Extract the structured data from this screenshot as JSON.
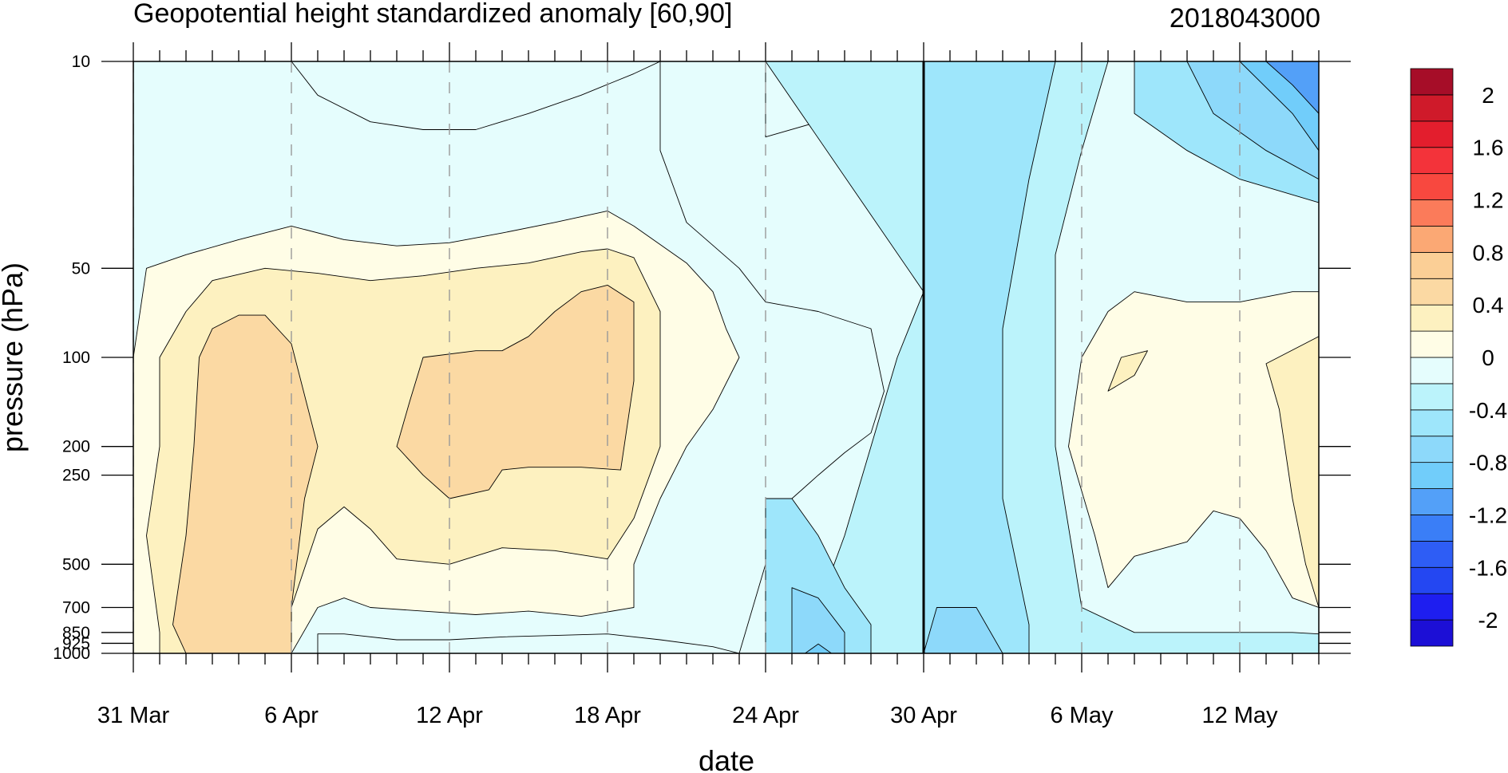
{
  "chart_data": {
    "type": "heatmap",
    "title": "Geopotential height standardized anomaly [60,90]",
    "subtitle": "2018043000",
    "xlabel": "date",
    "ylabel": "pressure (hPa)",
    "x_start": "31 Mar",
    "x_end": "15 May",
    "x_ticks": [
      {
        "label": "31 Mar",
        "day": 0
      },
      {
        "label": "6 Apr",
        "day": 6
      },
      {
        "label": "12 Apr",
        "day": 12
      },
      {
        "label": "18 Apr",
        "day": 18
      },
      {
        "label": "24 Apr",
        "day": 24
      },
      {
        "label": "30 Apr",
        "day": 30
      },
      {
        "label": "6 May",
        "day": 36
      },
      {
        "label": "12 May",
        "day": 42
      }
    ],
    "y_ticks": [
      {
        "label": "10",
        "p": 10
      },
      {
        "label": "50",
        "p": 50
      },
      {
        "label": "100",
        "p": 100
      },
      {
        "label": "200",
        "p": 200
      },
      {
        "label": "250",
        "p": 250
      },
      {
        "label": "500",
        "p": 500
      },
      {
        "label": "700",
        "p": 700
      },
      {
        "label": "850",
        "p": 850
      },
      {
        "label": "925",
        "p": 925
      },
      {
        "label": "1000",
        "p": 1000
      }
    ],
    "y_scale": "log",
    "y_reversed": true,
    "ylim": [
      1000,
      10
    ],
    "marker_day": 30,
    "grid": "dashed vertical lines at x ticks",
    "contour_levels": [
      -2.2,
      -2,
      -1.8,
      -1.6,
      -1.4,
      -1.2,
      -1,
      -0.8,
      -0.6,
      -0.4,
      -0.2,
      0,
      0.2,
      0.4,
      0.6,
      0.8,
      1,
      1.2,
      1.4,
      1.6,
      1.8,
      2,
      2.2
    ],
    "colorbar": {
      "colors": [
        "#1c0fd6",
        "#1e1ef0",
        "#2447f2",
        "#2e5df5",
        "#3a7ef7",
        "#53a0f8",
        "#71cdfa",
        "#8dd9fa",
        "#9ee6fb",
        "#bbf3fb",
        "#e5fdfd",
        "#fffde6",
        "#fdf1c0",
        "#fbd9a3",
        "#fbcf96",
        "#fba874",
        "#fb7b5a",
        "#f8483f",
        "#f3333a",
        "#e31e2d",
        "#cf1a2a",
        "#a60d28"
      ],
      "labels": [
        "2",
        "1.6",
        "1.2",
        "0.8",
        "0.4",
        "0",
        "-0.4",
        "-0.8",
        "-1.2",
        "-1.6",
        "-2"
      ]
    },
    "regions": [
      {
        "v": 0.0,
        "pts": [
          [
            0.5,
            50
          ],
          [
            2,
            45
          ],
          [
            4,
            40
          ],
          [
            6,
            36
          ],
          [
            8,
            40
          ],
          [
            10,
            42
          ],
          [
            12,
            41
          ],
          [
            14,
            38
          ],
          [
            16,
            35
          ],
          [
            18,
            32
          ],
          [
            19,
            36
          ],
          [
            21,
            48
          ],
          [
            22,
            60
          ],
          [
            22.5,
            80
          ],
          [
            23,
            100
          ],
          [
            22,
            150
          ],
          [
            21,
            200
          ],
          [
            20,
            300
          ],
          [
            19,
            500
          ],
          [
            19,
            700
          ],
          [
            17,
            750
          ],
          [
            15,
            720
          ],
          [
            13,
            740
          ],
          [
            11,
            720
          ],
          [
            9,
            700
          ],
          [
            8,
            650
          ],
          [
            7,
            700
          ],
          [
            6,
            1000
          ],
          [
            0,
            1000
          ],
          [
            0,
            850
          ],
          [
            0,
            100
          ]
        ]
      },
      {
        "v": 0.2,
        "pts": [
          [
            1,
            100
          ],
          [
            2,
            70
          ],
          [
            3,
            55
          ],
          [
            5,
            50
          ],
          [
            7,
            52
          ],
          [
            9,
            55
          ],
          [
            11,
            53
          ],
          [
            13,
            50
          ],
          [
            15,
            48
          ],
          [
            17,
            44
          ],
          [
            18,
            43
          ],
          [
            19,
            46
          ],
          [
            20,
            70
          ],
          [
            20,
            200
          ],
          [
            19,
            350
          ],
          [
            18,
            480
          ],
          [
            16,
            450
          ],
          [
            14,
            440
          ],
          [
            12,
            500
          ],
          [
            10,
            480
          ],
          [
            9,
            380
          ],
          [
            8,
            320
          ],
          [
            7,
            380
          ],
          [
            6,
            700
          ],
          [
            6,
            1000
          ],
          [
            1,
            1000
          ],
          [
            1,
            850
          ],
          [
            0.5,
            400
          ],
          [
            1,
            200
          ]
        ]
      },
      {
        "v": 0.4,
        "pts": [
          [
            2.5,
            100
          ],
          [
            3,
            80
          ],
          [
            4,
            72
          ],
          [
            5,
            72
          ],
          [
            6,
            90
          ],
          [
            7,
            200
          ],
          [
            6.5,
            300
          ],
          [
            6,
            700
          ],
          [
            6,
            1000
          ],
          [
            2,
            1000
          ],
          [
            1.5,
            800
          ],
          [
            2,
            400
          ],
          [
            2.3,
            200
          ]
        ]
      },
      {
        "v": 0.4,
        "pts": [
          [
            11,
            100
          ],
          [
            13,
            95
          ],
          [
            14,
            95
          ],
          [
            15,
            85
          ],
          [
            16,
            70
          ],
          [
            17,
            60
          ],
          [
            18,
            57
          ],
          [
            19,
            65
          ],
          [
            19,
            120
          ],
          [
            18.5,
            240
          ],
          [
            17,
            235
          ],
          [
            15,
            235
          ],
          [
            14,
            240
          ],
          [
            13.5,
            280
          ],
          [
            12,
            300
          ],
          [
            11,
            250
          ],
          [
            10,
            200
          ],
          [
            10.5,
            140
          ]
        ]
      },
      {
        "v": 0.0,
        "pts": [
          [
            36,
            100
          ],
          [
            37,
            70
          ],
          [
            38,
            60
          ],
          [
            40,
            65
          ],
          [
            42,
            65
          ],
          [
            44,
            60
          ],
          [
            45,
            60
          ],
          [
            45,
            700
          ],
          [
            44,
            650
          ],
          [
            43,
            450
          ],
          [
            42,
            350
          ],
          [
            41,
            330
          ],
          [
            40,
            420
          ],
          [
            38,
            470
          ],
          [
            37,
            600
          ],
          [
            36.5,
            400
          ],
          [
            35.5,
            200
          ]
        ]
      },
      {
        "v": 0.2,
        "pts": [
          [
            43,
            105
          ],
          [
            45,
            85
          ],
          [
            45,
            700
          ],
          [
            44.5,
            500
          ],
          [
            44,
            300
          ],
          [
            43.5,
            150
          ]
        ]
      },
      {
        "v": 0.2,
        "pts": [
          [
            37.5,
            100
          ],
          [
            38.5,
            95
          ],
          [
            38,
            115
          ],
          [
            37,
            130
          ]
        ]
      },
      {
        "v": -0.2,
        "pts": [
          [
            6,
            10
          ],
          [
            20,
            10
          ],
          [
            20,
            10
          ],
          [
            19,
            11
          ],
          [
            17,
            13
          ],
          [
            15,
            15
          ],
          [
            13,
            17
          ],
          [
            11,
            17
          ],
          [
            9,
            16
          ],
          [
            7,
            13
          ]
        ]
      },
      {
        "v": -0.2,
        "pts": [
          [
            20,
            10
          ],
          [
            24,
            10
          ],
          [
            24,
            18
          ],
          [
            26,
            16
          ],
          [
            29,
            18
          ],
          [
            30,
            40
          ],
          [
            30,
            100
          ],
          [
            31,
            150
          ],
          [
            32,
            250
          ],
          [
            31,
            400
          ],
          [
            30,
            600
          ],
          [
            30,
            1000
          ],
          [
            23,
            1000
          ],
          [
            22,
            950
          ],
          [
            20,
            900
          ],
          [
            18,
            860
          ],
          [
            16,
            870
          ],
          [
            14,
            880
          ],
          [
            12,
            900
          ],
          [
            10,
            900
          ],
          [
            8,
            860
          ],
          [
            7,
            860
          ],
          [
            7,
            1000
          ],
          [
            8,
            1000
          ],
          [
            10,
            1000
          ],
          [
            23,
            1000
          ],
          [
            24,
            500
          ],
          [
            25,
            300
          ],
          [
            26,
            250
          ],
          [
            27,
            210
          ],
          [
            28,
            180
          ],
          [
            28.5,
            130
          ],
          [
            28,
            80
          ],
          [
            26,
            70
          ],
          [
            24,
            65
          ],
          [
            23,
            50
          ],
          [
            21,
            35
          ],
          [
            20,
            20
          ]
        ]
      },
      {
        "v": -0.4,
        "pts": [
          [
            24,
            10
          ],
          [
            30,
            10
          ],
          [
            30,
            1000
          ],
          [
            24,
            1000
          ],
          [
            25,
            900
          ],
          [
            26,
            700
          ],
          [
            27,
            400
          ],
          [
            28,
            200
          ],
          [
            29,
            100
          ],
          [
            30,
            60
          ]
        ]
      },
      {
        "v": -0.4,
        "pts": [
          [
            30,
            10
          ],
          [
            37,
            10
          ],
          [
            36,
            20
          ],
          [
            35,
            45
          ],
          [
            35,
            200
          ],
          [
            36,
            700
          ],
          [
            38,
            850
          ],
          [
            40,
            850
          ],
          [
            42,
            850
          ],
          [
            44,
            850
          ],
          [
            45,
            860
          ],
          [
            45,
            1000
          ],
          [
            30,
            1000
          ]
        ]
      },
      {
        "v": -0.6,
        "pts": [
          [
            30,
            10
          ],
          [
            35,
            10
          ],
          [
            34,
            25
          ],
          [
            33,
            80
          ],
          [
            33,
            300
          ],
          [
            34,
            800
          ],
          [
            34,
            1000
          ],
          [
            30,
            1000
          ]
        ]
      },
      {
        "v": -0.6,
        "pts": [
          [
            24,
            300
          ],
          [
            25,
            300
          ],
          [
            26,
            400
          ],
          [
            27,
            600
          ],
          [
            28,
            800
          ],
          [
            28,
            1000
          ],
          [
            24,
            1000
          ],
          [
            24,
            700
          ]
        ]
      },
      {
        "v": -0.8,
        "pts": [
          [
            25,
            600
          ],
          [
            26,
            650
          ],
          [
            27,
            850
          ],
          [
            27,
            1000
          ],
          [
            25,
            1000
          ]
        ]
      },
      {
        "v": -0.8,
        "pts": [
          [
            30,
            1000
          ],
          [
            30.5,
            700
          ],
          [
            32,
            700
          ],
          [
            33,
            1000
          ]
        ]
      },
      {
        "v": -0.6,
        "pts": [
          [
            38,
            10
          ],
          [
            45,
            10
          ],
          [
            45,
            30
          ],
          [
            42,
            25
          ],
          [
            40,
            20
          ],
          [
            38,
            15
          ]
        ]
      },
      {
        "v": -0.8,
        "pts": [
          [
            40,
            10
          ],
          [
            45,
            10
          ],
          [
            45,
            25
          ],
          [
            43,
            20
          ],
          [
            41,
            15
          ]
        ]
      },
      {
        "v": -1.0,
        "pts": [
          [
            42,
            10
          ],
          [
            45,
            10
          ],
          [
            45,
            20
          ],
          [
            44,
            15
          ]
        ]
      },
      {
        "v": -1.2,
        "pts": [
          [
            43,
            10
          ],
          [
            45,
            10
          ],
          [
            45,
            15
          ],
          [
            44,
            12
          ]
        ]
      },
      {
        "v": -1.0,
        "pts": [
          [
            25.5,
            1000
          ],
          [
            26,
            930
          ],
          [
            26.5,
            1000
          ]
        ]
      }
    ]
  }
}
